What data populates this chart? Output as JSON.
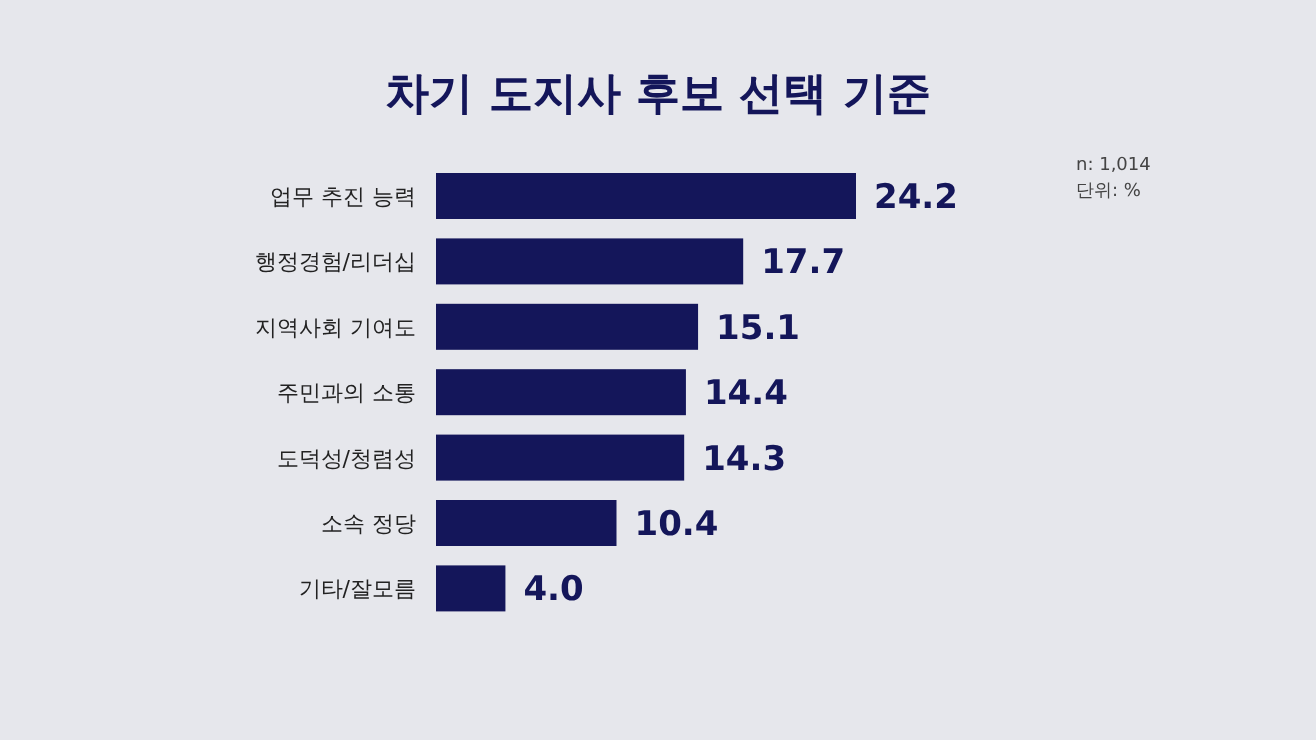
{
  "chart_data": {
    "type": "bar",
    "orientation": "horizontal",
    "title": "차기 도지사 후보 선택 기준",
    "categories": [
      "업무 추진 능력",
      "행정경험/리더십",
      "지역사회 기여도",
      "주민과의 소통",
      "도덕성/청렴성",
      "소속 정당",
      "기타/잘모름"
    ],
    "values": [
      24.2,
      17.7,
      15.1,
      14.4,
      14.3,
      10.4,
      4.0
    ],
    "color": "#14165a",
    "value_labels": [
      "24.2",
      "17.7",
      "15.1",
      "14.4",
      "14.3",
      "10.4",
      "4.0"
    ],
    "annotations": [
      "n: 1,014",
      "단위: %"
    ]
  }
}
